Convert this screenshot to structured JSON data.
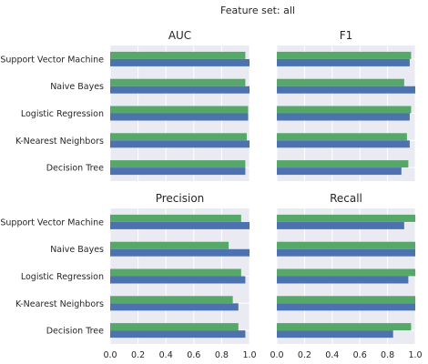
{
  "suptitle": "Feature set: all",
  "colors": {
    "series_a": "#55a868",
    "series_b": "#4c72b0",
    "panel_bg": "#eaeaf2",
    "grid": "#ffffff"
  },
  "chart_data": [
    {
      "type": "bar",
      "orientation": "horizontal",
      "title": "AUC",
      "categories": [
        "Support Vector Machine",
        "Naive Bayes",
        "Logistic Regression",
        "K-Nearest Neighbors",
        "Decision Tree"
      ],
      "series": [
        {
          "values": [
            0.97,
            0.97,
            0.99,
            0.98,
            0.97
          ]
        },
        {
          "values": [
            1.0,
            1.0,
            0.99,
            1.0,
            0.97
          ]
        }
      ],
      "xlim": [
        0,
        1.0
      ],
      "xticks": [],
      "grid": true
    },
    {
      "type": "bar",
      "orientation": "horizontal",
      "title": "F1",
      "categories": [
        "Support Vector Machine",
        "Naive Bayes",
        "Logistic Regression",
        "K-Nearest Neighbors",
        "Decision Tree"
      ],
      "series": [
        {
          "values": [
            0.97,
            0.92,
            0.97,
            0.94,
            0.95
          ]
        },
        {
          "values": [
            0.96,
            1.0,
            0.96,
            0.96,
            0.9
          ]
        }
      ],
      "xlim": [
        0,
        1.0
      ],
      "xticks": [],
      "grid": true
    },
    {
      "type": "bar",
      "orientation": "horizontal",
      "title": "Precision",
      "categories": [
        "Support Vector Machine",
        "Naive Bayes",
        "Logistic Regression",
        "K-Nearest Neighbors",
        "Decision Tree"
      ],
      "series": [
        {
          "values": [
            0.94,
            0.85,
            0.94,
            0.88,
            0.92
          ]
        },
        {
          "values": [
            1.0,
            1.0,
            0.97,
            0.92,
            0.97
          ]
        }
      ],
      "xlim": [
        0,
        1.0
      ],
      "xticks": [
        "0.0",
        "0.2",
        "0.4",
        "0.6",
        "0.8",
        "1.0"
      ],
      "grid": true
    },
    {
      "type": "bar",
      "orientation": "horizontal",
      "title": "Recall",
      "categories": [
        "Support Vector Machine",
        "Naive Bayes",
        "Logistic Regression",
        "K-Nearest Neighbors",
        "Decision Tree"
      ],
      "series": [
        {
          "values": [
            1.0,
            1.0,
            1.0,
            1.0,
            0.97
          ]
        },
        {
          "values": [
            0.92,
            1.0,
            0.95,
            1.0,
            0.84
          ]
        }
      ],
      "xlim": [
        0,
        1.0
      ],
      "xticks": [
        "0.0",
        "0.2",
        "0.4",
        "0.6",
        "0.8",
        "1.0"
      ],
      "grid": true
    }
  ]
}
